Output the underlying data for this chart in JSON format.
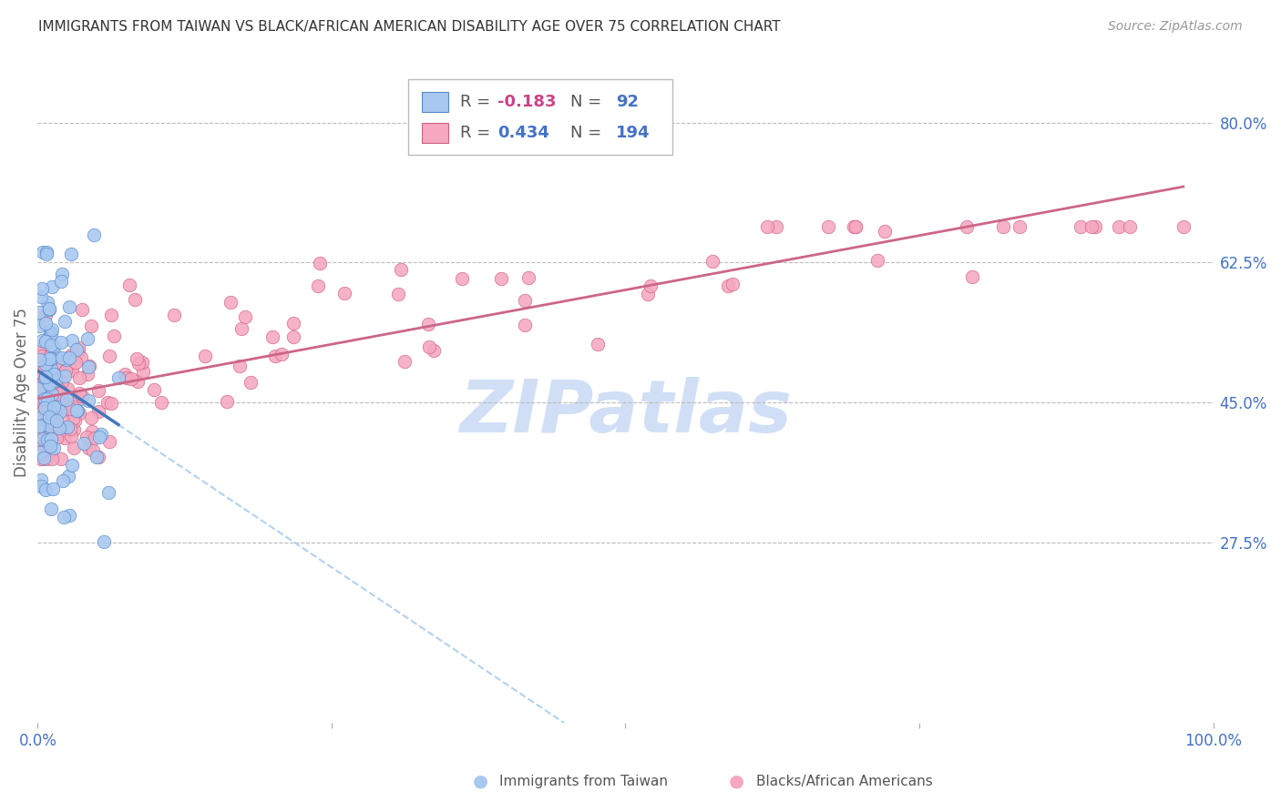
{
  "title": "IMMIGRANTS FROM TAIWAN VS BLACK/AFRICAN AMERICAN DISABILITY AGE OVER 75 CORRELATION CHART",
  "source": "Source: ZipAtlas.com",
  "ylabel": "Disability Age Over 75",
  "ytick_labels": [
    "80.0%",
    "62.5%",
    "45.0%",
    "27.5%"
  ],
  "ytick_values": [
    0.8,
    0.625,
    0.45,
    0.275
  ],
  "xlim": [
    0.0,
    1.0
  ],
  "ylim": [
    0.05,
    0.875
  ],
  "legend_blue_R": "-0.183",
  "legend_blue_N": "92",
  "legend_pink_R": "0.434",
  "legend_pink_N": "194",
  "blue_color": "#A8C8F0",
  "blue_edge_color": "#5588CC",
  "blue_line_color": "#4477BB",
  "pink_color": "#F5A8C0",
  "pink_edge_color": "#D06080",
  "pink_line_color": "#CC6688",
  "watermark": "ZIPatlas",
  "watermark_color": "#D0DFF5",
  "background_color": "#FFFFFF",
  "grid_color": "#BBBBBB"
}
